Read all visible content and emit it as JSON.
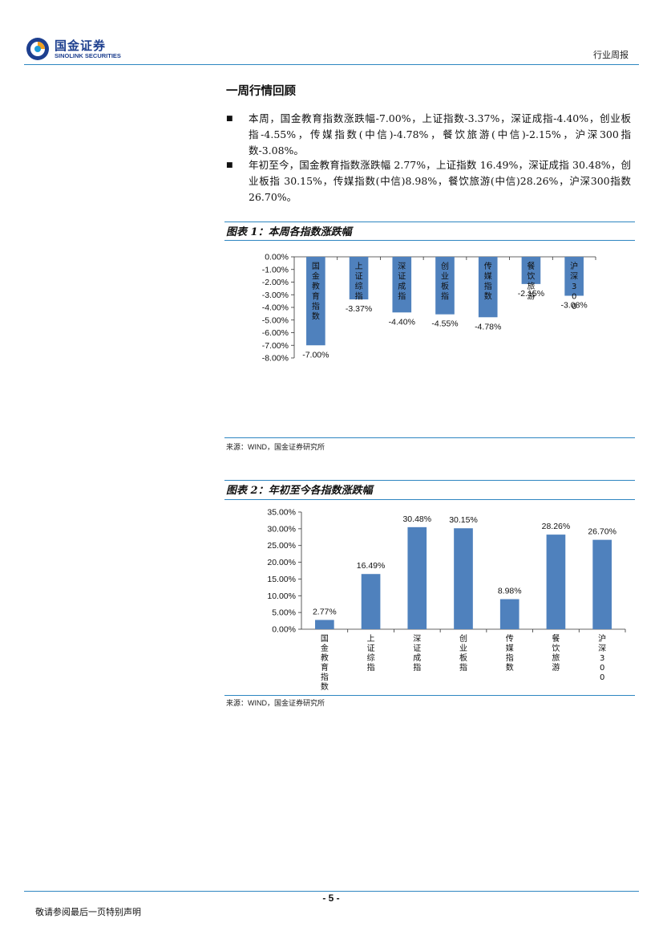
{
  "header": {
    "company_cn": "国金证券",
    "company_en": "SINOLINK SECURITIES",
    "report_type": "行业周报"
  },
  "section": {
    "title": "一周行情回顾",
    "bullets": [
      "本周，国金教育指数涨跌幅-7.00%，上证指数-3.37%，深证成指-4.40%，创业板指-4.55%，传媒指数(中信)-4.78%，餐饮旅游(中信)-2.15%，沪深300指数-3.08%。",
      "年初至今，国金教育指数涨跌幅 2.77%，上证指数 16.49%，深证成指 30.48%，创业板指 30.15%，传媒指数(中信)8.98%，餐饮旅游(中信)28.26%，沪深300指数26.70%。"
    ]
  },
  "figure1": {
    "title": "图表 1：本周各指数涨跌幅",
    "source_label": "来源：",
    "source_en": "WIND",
    "source_rest": "，国金证券研究所"
  },
  "figure2": {
    "title": "图表 2：年初至今各指数涨跌幅",
    "source_label": "来源：",
    "source_en": "WIND",
    "source_rest": "，国金证券研究所"
  },
  "chart_data": [
    {
      "type": "bar",
      "title": "",
      "categories": [
        "国金教育指数",
        "上证综指",
        "深证成指",
        "创业板指",
        "传媒指数",
        "餐饮旅游",
        "沪深300"
      ],
      "values": [
        -7.0,
        -3.37,
        -4.4,
        -4.55,
        -4.78,
        -2.15,
        -3.08
      ],
      "data_labels": [
        "-7.00%",
        "-3.37%",
        "-4.40%",
        "-4.55%",
        "-4.78%",
        "-2.15%",
        "-3.08%"
      ],
      "ylim": [
        -8,
        0
      ],
      "yticks": [
        "0.00%",
        "-1.00%",
        "-2.00%",
        "-3.00%",
        "-4.00%",
        "-5.00%",
        "-6.00%",
        "-7.00%",
        "-8.00%"
      ],
      "bar_color": "#4f81bd",
      "grid": false,
      "legend": "none"
    },
    {
      "type": "bar",
      "title": "",
      "categories": [
        "国金教育指数",
        "上证综指",
        "深证成指",
        "创业板指",
        "传媒指数",
        "餐饮旅游",
        "沪深300"
      ],
      "values": [
        2.77,
        16.49,
        30.48,
        30.15,
        8.98,
        28.26,
        26.7
      ],
      "data_labels": [
        "2.77%",
        "16.49%",
        "30.48%",
        "30.15%",
        "8.98%",
        "28.26%",
        "26.70%"
      ],
      "ylim": [
        0,
        35
      ],
      "yticks": [
        "35.00%",
        "30.00%",
        "25.00%",
        "20.00%",
        "15.00%",
        "10.00%",
        "5.00%",
        "0.00%"
      ],
      "bar_color": "#4f81bd",
      "grid": false,
      "legend": "none"
    }
  ],
  "footer": {
    "page": "- 5 -",
    "disclaimer": "敬请参阅最后一页特别声明"
  }
}
